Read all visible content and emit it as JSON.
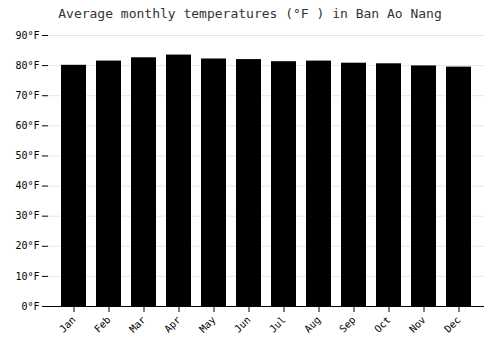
{
  "chart_data": {
    "type": "bar",
    "title": "Average monthly temperatures (°F ) in Ban Ao Nang",
    "categories": [
      "Jan",
      "Feb",
      "Mar",
      "Apr",
      "May",
      "Jun",
      "Jul",
      "Aug",
      "Sep",
      "Oct",
      "Nov",
      "Dec"
    ],
    "values": [
      80.1,
      81.5,
      82.6,
      83.5,
      82.2,
      82.0,
      81.3,
      81.5,
      80.8,
      80.6,
      79.9,
      79.5
    ],
    "ylim": [
      0,
      90
    ],
    "yticks": [
      {
        "value": 0,
        "label": "0°F"
      },
      {
        "value": 10,
        "label": "10°F"
      },
      {
        "value": 20,
        "label": "20°F"
      },
      {
        "value": 30,
        "label": "30°F"
      },
      {
        "value": 40,
        "label": "40°F"
      },
      {
        "value": 50,
        "label": "50°F"
      },
      {
        "value": 60,
        "label": "60°F"
      },
      {
        "value": 70,
        "label": "70°F"
      },
      {
        "value": 80,
        "label": "80°F"
      },
      {
        "value": 90,
        "label": "90°F"
      }
    ],
    "grid": true
  }
}
